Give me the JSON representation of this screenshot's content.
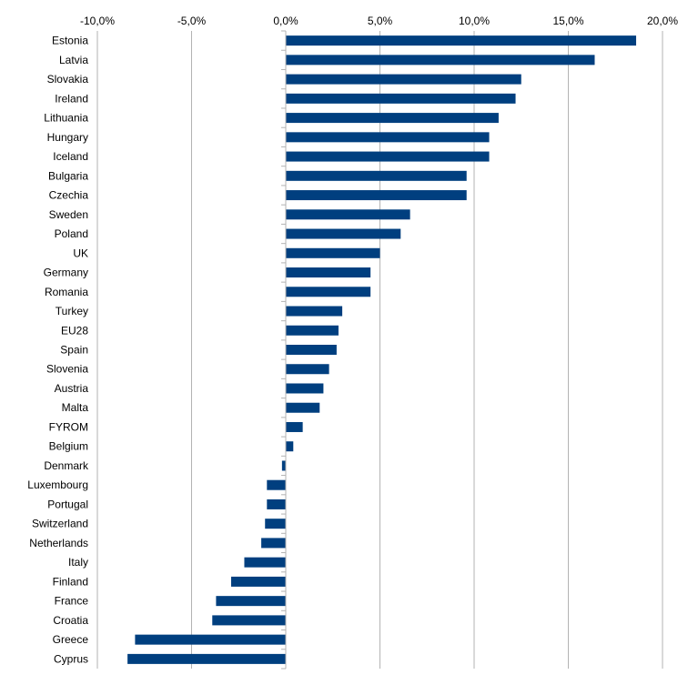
{
  "chart_data": {
    "type": "bar",
    "orientation": "horizontal",
    "title": "",
    "xlabel": "",
    "ylabel": "",
    "xlim": [
      -10,
      20
    ],
    "x_ticks": [
      -10,
      -5,
      0,
      5,
      10,
      15,
      20
    ],
    "x_tick_labels": [
      "-10,0%",
      "-5,0%",
      "0,0%",
      "5,0%",
      "10,0%",
      "15,0%",
      "20,0%"
    ],
    "x_axis_position": "top",
    "grid": true,
    "legend": "none",
    "bar_color": "#003f7f",
    "categories": [
      "Estonia",
      "Latvia",
      "Slovakia",
      "Ireland",
      "Lithuania",
      "Hungary",
      "Iceland",
      "Bulgaria",
      "Czechia",
      "Sweden",
      "Poland",
      "UK",
      "Germany",
      "Romania",
      "Turkey",
      "EU28",
      "Spain",
      "Slovenia",
      "Austria",
      "Malta",
      "FYROM",
      "Belgium",
      "Denmark",
      "Luxembourg",
      "Portugal",
      "Switzerland",
      "Netherlands",
      "Italy",
      "Finland",
      "France",
      "Croatia",
      "Greece",
      "Cyprus"
    ],
    "values": [
      18.6,
      16.4,
      12.5,
      12.2,
      11.3,
      10.8,
      10.8,
      9.6,
      9.6,
      6.6,
      6.1,
      5.0,
      4.5,
      4.5,
      3.0,
      2.8,
      2.7,
      2.3,
      2.0,
      1.8,
      0.9,
      0.4,
      -0.2,
      -1.0,
      -1.0,
      -1.1,
      -1.3,
      -2.2,
      -2.9,
      -3.7,
      -3.9,
      -8.0,
      -8.4
    ]
  }
}
